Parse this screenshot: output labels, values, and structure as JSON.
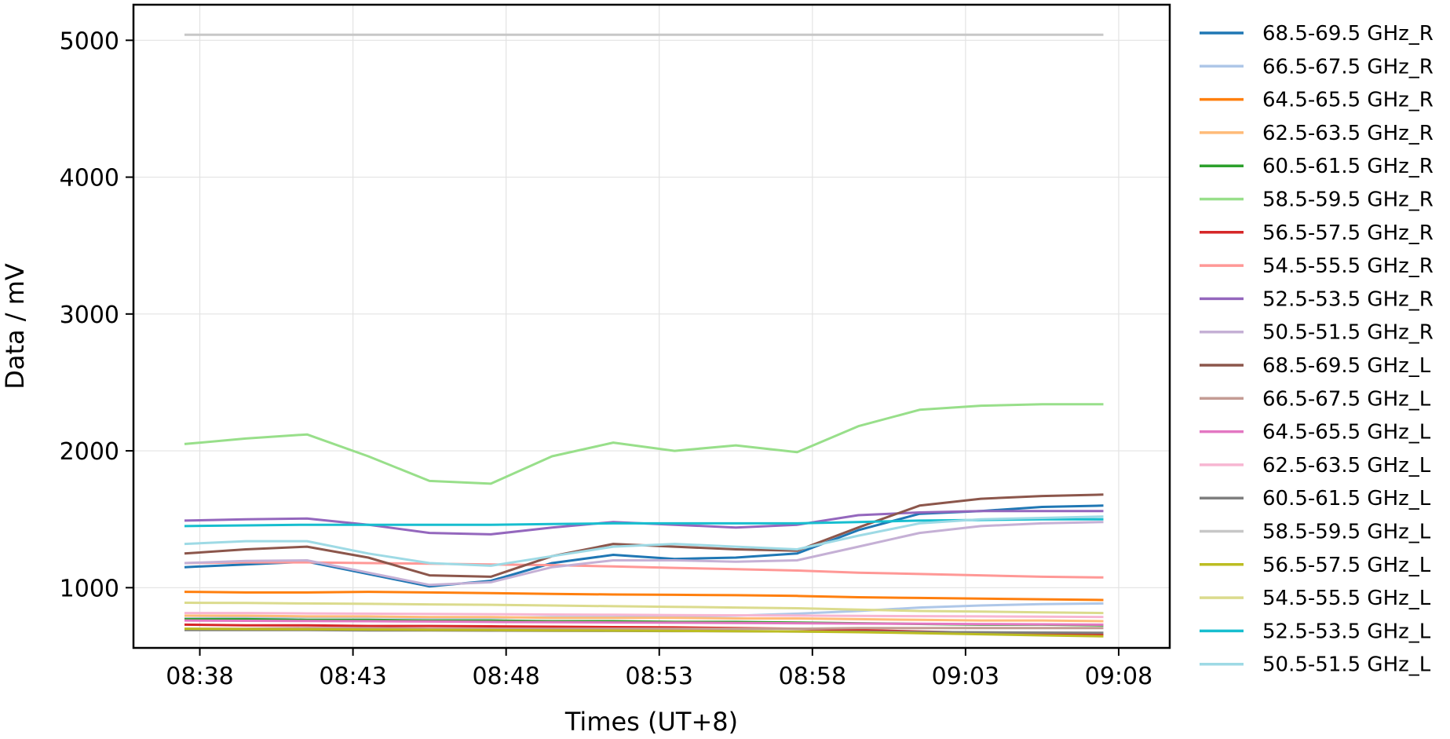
{
  "chart_data": {
    "type": "line",
    "xlabel": "Times (UT+8)",
    "ylabel": "Data / mV",
    "x_unit": "HH:MM (UT+8)",
    "xlim": [
      "08:35:50",
      "09:09:40"
    ],
    "ylim": [
      560,
      5260
    ],
    "grid": true,
    "legend_position": "right-outside",
    "xticks": [
      "08:38",
      "08:43",
      "08:48",
      "08:53",
      "08:58",
      "09:03",
      "09:08"
    ],
    "yticks": [
      1000,
      2000,
      3000,
      4000,
      5000
    ],
    "x": [
      "08:37:30",
      "08:39:30",
      "08:41:30",
      "08:43:30",
      "08:45:30",
      "08:47:30",
      "08:49:30",
      "08:51:30",
      "08:53:30",
      "08:55:30",
      "08:57:30",
      "08:59:30",
      "09:01:30",
      "09:03:30",
      "09:05:30",
      "09:07:30"
    ],
    "series": [
      {
        "name": "68.5-69.5 GHz_R",
        "color": "#1f77b4",
        "values": [
          1150,
          1170,
          1190,
          1100,
          1010,
          1050,
          1180,
          1240,
          1210,
          1220,
          1250,
          1420,
          1540,
          1560,
          1590,
          1600
        ]
      },
      {
        "name": "66.5-67.5 GHz_R",
        "color": "#aec7e8",
        "values": [
          775,
          780,
          785,
          785,
          780,
          780,
          785,
          785,
          790,
          795,
          810,
          830,
          855,
          870,
          880,
          885
        ]
      },
      {
        "name": "64.5-65.5 GHz_R",
        "color": "#ff7f0e",
        "values": [
          970,
          965,
          965,
          970,
          965,
          960,
          955,
          950,
          948,
          945,
          940,
          930,
          925,
          920,
          915,
          910
        ]
      },
      {
        "name": "62.5-63.5 GHz_R",
        "color": "#ffbb78",
        "values": [
          795,
          795,
          790,
          790,
          785,
          785,
          780,
          780,
          780,
          775,
          775,
          770,
          765,
          760,
          760,
          755
        ]
      },
      {
        "name": "60.5-61.5 GHz_R",
        "color": "#2ca02c",
        "values": [
          770,
          770,
          765,
          765,
          760,
          760,
          755,
          755,
          750,
          750,
          745,
          740,
          735,
          730,
          730,
          725
        ]
      },
      {
        "name": "58.5-59.5 GHz_R",
        "color": "#98df8a",
        "values": [
          2050,
          2090,
          2120,
          1960,
          1780,
          1760,
          1960,
          2060,
          2000,
          2040,
          1990,
          2180,
          2300,
          2330,
          2340,
          2340
        ]
      },
      {
        "name": "56.5-57.5 GHz_R",
        "color": "#d62728",
        "values": [
          730,
          725,
          725,
          720,
          720,
          718,
          715,
          712,
          710,
          705,
          700,
          690,
          680,
          670,
          662,
          655
        ]
      },
      {
        "name": "54.5-55.5 GHz_R",
        "color": "#ff9896",
        "values": [
          1180,
          1185,
          1185,
          1180,
          1175,
          1170,
          1165,
          1155,
          1145,
          1135,
          1125,
          1110,
          1100,
          1090,
          1080,
          1075
        ]
      },
      {
        "name": "52.5-53.5 GHz_R",
        "color": "#9467bd",
        "values": [
          1490,
          1500,
          1505,
          1460,
          1400,
          1390,
          1440,
          1480,
          1460,
          1440,
          1460,
          1530,
          1550,
          1560,
          1560,
          1560
        ]
      },
      {
        "name": "50.5-51.5 GHz_R",
        "color": "#c5b0d5",
        "values": [
          1180,
          1195,
          1200,
          1110,
          1020,
          1040,
          1150,
          1200,
          1200,
          1190,
          1200,
          1300,
          1400,
          1450,
          1470,
          1480
        ]
      },
      {
        "name": "68.5-69.5 GHz_L",
        "color": "#8c564b",
        "values": [
          1250,
          1280,
          1300,
          1220,
          1090,
          1080,
          1230,
          1320,
          1300,
          1280,
          1270,
          1440,
          1600,
          1650,
          1670,
          1680
        ]
      },
      {
        "name": "66.5-67.5 GHz_L",
        "color": "#c49c94",
        "values": [
          700,
          700,
          705,
          705,
          700,
          700,
          700,
          700,
          700,
          700,
          700,
          705,
          705,
          705,
          705,
          705
        ]
      },
      {
        "name": "64.5-65.5 GHz_L",
        "color": "#e377c2",
        "values": [
          760,
          758,
          756,
          755,
          753,
          750,
          748,
          746,
          744,
          742,
          740,
          738,
          736,
          734,
          732,
          730
        ]
      },
      {
        "name": "62.5-63.5 GHz_L",
        "color": "#f7b6d2",
        "values": [
          815,
          815,
          812,
          810,
          808,
          806,
          804,
          802,
          800,
          798,
          796,
          794,
          792,
          790,
          788,
          786
        ]
      },
      {
        "name": "60.5-61.5 GHz_L",
        "color": "#7f7f7f",
        "values": [
          690,
          690,
          690,
          688,
          688,
          686,
          685,
          684,
          683,
          682,
          680,
          678,
          676,
          674,
          672,
          670
        ]
      },
      {
        "name": "58.5-59.5 GHz_L",
        "color": "#c7c7c7",
        "values": [
          5040,
          5040,
          5040,
          5040,
          5040,
          5040,
          5040,
          5040,
          5040,
          5040,
          5040,
          5040,
          5040,
          5040,
          5040,
          5040
        ]
      },
      {
        "name": "56.5-57.5 GHz_L",
        "color": "#bcbd22",
        "values": [
          700,
          698,
          696,
          694,
          692,
          690,
          688,
          686,
          684,
          682,
          680,
          675,
          668,
          660,
          652,
          645
        ]
      },
      {
        "name": "54.5-55.5 GHz_L",
        "color": "#dbdb8d",
        "values": [
          890,
          888,
          885,
          882,
          878,
          875,
          870,
          865,
          860,
          855,
          850,
          840,
          830,
          825,
          820,
          815
        ]
      },
      {
        "name": "52.5-53.5 GHz_L",
        "color": "#17becf",
        "values": [
          1450,
          1455,
          1460,
          1460,
          1460,
          1460,
          1465,
          1470,
          1470,
          1470,
          1470,
          1480,
          1490,
          1495,
          1500,
          1500
        ]
      },
      {
        "name": "50.5-51.5 GHz_L",
        "color": "#9edae5",
        "values": [
          1320,
          1340,
          1340,
          1250,
          1180,
          1160,
          1230,
          1300,
          1320,
          1300,
          1280,
          1380,
          1470,
          1500,
          1510,
          1520
        ]
      }
    ]
  }
}
